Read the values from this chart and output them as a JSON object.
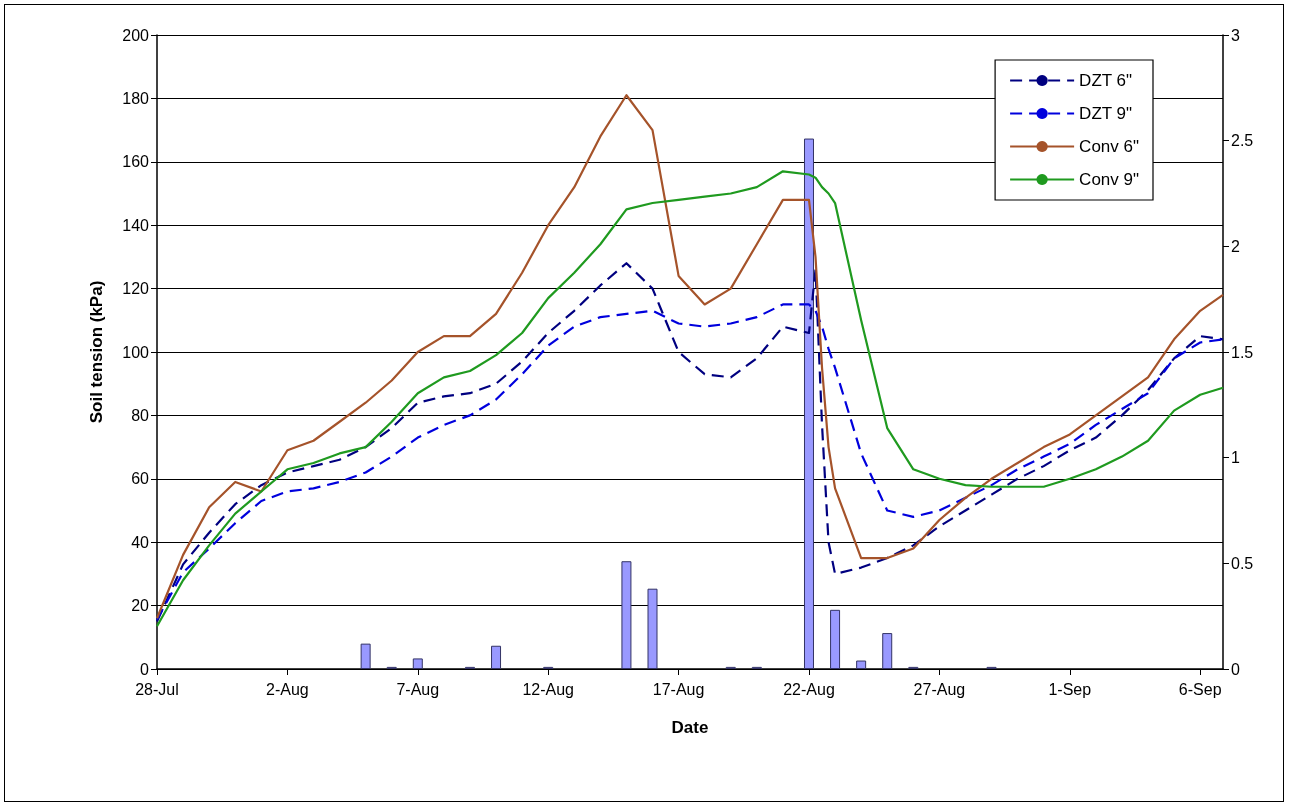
{
  "chart_data": {
    "type": "line",
    "xlabel": "Date",
    "ylabel": "Soil tension (kPa)",
    "x": [
      "--07-28",
      "--07-29",
      "--07-30",
      "--07-31",
      "--08-01",
      "--08-02",
      "--08-03",
      "--08-04",
      "--08-05",
      "--08-06",
      "--08-07",
      "--08-08",
      "--08-09",
      "--08-10",
      "--08-11",
      "--08-12",
      "--08-13",
      "--08-14",
      "--08-15",
      "--08-16",
      "--08-17",
      "--08-18",
      "--08-19",
      "--08-20",
      "--08-21",
      "--08-22",
      "--08-22T06:00",
      "--08-22T12:00",
      "--08-22T18:00",
      "--08-23",
      "--08-24",
      "--08-25",
      "--08-26",
      "--08-27",
      "--08-28",
      "--08-29",
      "--08-30",
      "--08-31",
      "--09-01",
      "--09-02",
      "--09-03",
      "--09-04",
      "--09-05",
      "--09-06",
      "--09-06T21:00"
    ],
    "series": [
      {
        "name": "DZT 6\"",
        "color": "#000080",
        "line_style": "dashed",
        "values": [
          15,
          33,
          43,
          52,
          58,
          62,
          64,
          66,
          70,
          76,
          84,
          86,
          87,
          90,
          97,
          106,
          113,
          121,
          128,
          120,
          100,
          93,
          92,
          98,
          108,
          106,
          126,
          77,
          40,
          30,
          32,
          35,
          39,
          45,
          50,
          55,
          60,
          64,
          69,
          73,
          80,
          88,
          98,
          105,
          104
        ]
      },
      {
        "name": "DZT 9\"",
        "color": "#0000dd",
        "line_style": "dashed",
        "values": [
          15.6,
          30.5,
          38,
          46,
          53,
          56,
          57,
          59,
          62,
          67,
          73,
          77,
          80,
          85,
          93,
          102,
          108,
          111,
          112,
          113,
          109,
          108,
          109,
          111,
          115,
          115,
          113,
          108,
          101,
          95,
          68,
          50,
          48,
          50,
          54,
          58,
          63,
          67,
          71,
          77,
          82,
          87,
          98,
          103,
          104
        ]
      },
      {
        "name": "Conv 6\"",
        "color": "#a5532a",
        "line_style": "solid",
        "values": [
          16,
          36,
          51,
          59,
          56,
          69,
          72,
          78,
          84,
          91,
          100,
          105,
          105,
          112,
          125,
          140,
          152,
          168,
          181,
          170,
          124,
          115,
          120,
          134,
          148,
          148,
          130,
          95,
          70,
          57,
          35,
          35,
          38,
          47,
          54,
          60,
          65,
          70,
          74,
          80,
          86,
          92,
          104,
          113,
          118
        ]
      },
      {
        "name": "Conv 9\"",
        "color": "#1f9a1f",
        "line_style": "solid",
        "values": [
          13.5,
          28,
          39,
          49,
          56,
          63,
          65,
          68,
          70,
          78,
          87,
          92,
          94,
          99,
          106,
          117,
          125,
          134,
          145,
          147,
          148,
          149,
          150,
          152,
          157,
          156,
          155,
          152,
          150,
          147,
          110,
          76,
          63,
          60,
          58,
          57.5,
          57.5,
          57.5,
          60,
          63,
          67,
          72,
          81.5,
          86.5,
          88.7
        ]
      },
      {
        "type": "bar",
        "axis": "y2",
        "color": "#9999ff",
        "x": [
          "--08-05",
          "--08-06",
          "--08-07",
          "--08-09",
          "--08-10",
          "--08-12",
          "--08-15",
          "--08-16",
          "--08-19",
          "--08-20",
          "--08-22",
          "--08-23",
          "--08-24",
          "--08-25",
          "--08-26",
          "--08-29"
        ],
        "values": [
          0.12,
          0.01,
          0.05,
          0.01,
          0.11,
          0.01,
          0.51,
          0.38,
          0.01,
          0.01,
          2.51,
          0.28,
          0.04,
          0.17,
          0.01,
          0.01
        ]
      }
    ],
    "xlim": [
      "--07-28",
      "--09-06T21:00"
    ],
    "xticks": [
      {
        "value": "--07-28",
        "label": "28-Jul"
      },
      {
        "value": "--08-02",
        "label": "2-Aug"
      },
      {
        "value": "--08-07",
        "label": "7-Aug"
      },
      {
        "value": "--08-12",
        "label": "12-Aug"
      },
      {
        "value": "--08-17",
        "label": "17-Aug"
      },
      {
        "value": "--08-22",
        "label": "22-Aug"
      },
      {
        "value": "--08-27",
        "label": "27-Aug"
      },
      {
        "value": "--09-01",
        "label": "1-Sep"
      },
      {
        "value": "--09-06",
        "label": "6-Sep"
      }
    ],
    "ylim": [
      0,
      200
    ],
    "yticks": [
      0,
      20,
      40,
      60,
      80,
      100,
      120,
      140,
      160,
      180,
      200
    ],
    "y2lim": [
      0,
      3
    ],
    "y2ticks": [
      0,
      0.5,
      1,
      1.5,
      2,
      2.5,
      3
    ],
    "grid": "y",
    "legend": "top right",
    "marker": "none"
  }
}
